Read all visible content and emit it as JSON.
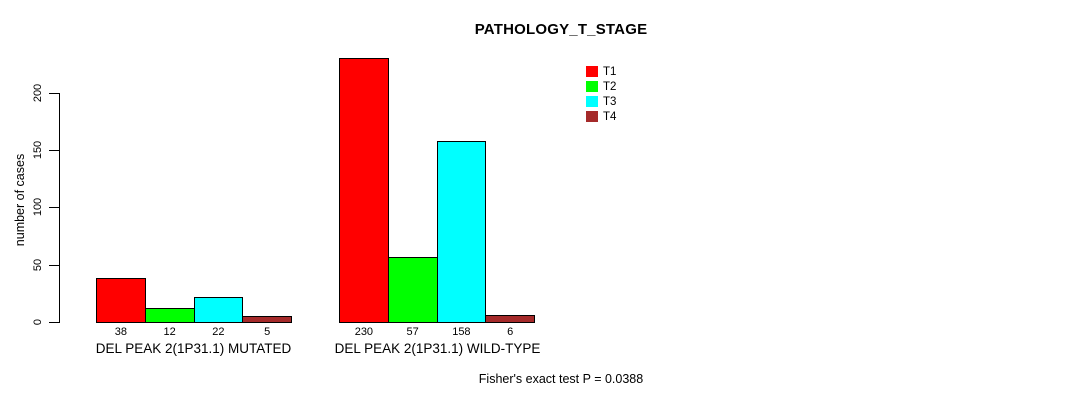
{
  "chart_data": {
    "type": "bar",
    "title": "PATHOLOGY_T_STAGE",
    "ylabel": "number of cases",
    "xlabel": "",
    "categories": [
      "DEL PEAK 2(1P31.1) MUTATED",
      "DEL PEAK 2(1P31.1) WILD-TYPE"
    ],
    "series": [
      {
        "name": "T1",
        "color": "#ff0000",
        "values": [
          38,
          230
        ]
      },
      {
        "name": "T2",
        "color": "#00ff00",
        "values": [
          12,
          57
        ]
      },
      {
        "name": "T3",
        "color": "#00ffff",
        "values": [
          22,
          158
        ]
      },
      {
        "name": "T4",
        "color": "#a52a2a",
        "values": [
          5,
          6
        ]
      }
    ],
    "yticks": [
      0,
      50,
      100,
      150,
      200
    ],
    "ylim": [
      0,
      235
    ],
    "grid": false,
    "legend_position": "top-right-inside",
    "legend_entries": [
      "T1",
      "T2",
      "T3",
      "T4"
    ],
    "annotation": "Fisher's exact test P = 0.0388"
  }
}
